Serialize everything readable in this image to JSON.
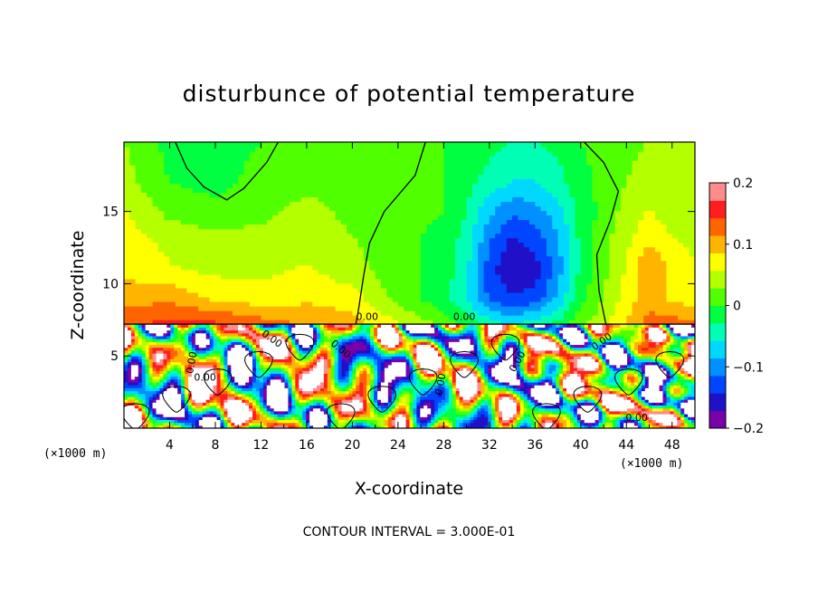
{
  "chart_data": {
    "type": "heatmap",
    "title": "disturbunce of potential temperature",
    "xlabel": "X-coordinate",
    "ylabel": "Z-coordinate",
    "x_unit": "(×1000 m)",
    "y_unit": "(×1000 m)",
    "xlim": [
      0,
      50
    ],
    "ylim": [
      0,
      19.8
    ],
    "x_ticks": [
      4,
      8,
      12,
      16,
      20,
      24,
      28,
      32,
      36,
      40,
      44,
      48
    ],
    "y_ticks": [
      5,
      10,
      15
    ],
    "colorbar": {
      "range": [
        -0.2,
        0.2
      ],
      "ticks": [
        0.2,
        0.1,
        0,
        -0.1,
        -0.2
      ],
      "tick_labels": [
        "0.2",
        "0.1",
        "0",
        "−0.1",
        "−0.2"
      ],
      "colors": [
        "#7a00aa",
        "#2010c8",
        "#0046ff",
        "#0090ff",
        "#00d8ff",
        "#00ffb4",
        "#00ff40",
        "#50ff00",
        "#b4ff00",
        "#ffff00",
        "#ffb400",
        "#ff6400",
        "#ff1e1e",
        "#ff8c8c"
      ]
    },
    "contour_interval_text": "CONTOUR INTERVAL = 3.000E-01",
    "contour_labels": [
      "0.00",
      "0.00",
      "0.00",
      "0.00",
      "0.00",
      "0.00",
      "0.00",
      "0.00",
      "0.00",
      "0.00"
    ],
    "boundary_z": 7.2,
    "upper_field": {
      "x": [
        0,
        4,
        8,
        12,
        16,
        20,
        24,
        28,
        30,
        32,
        34,
        36,
        38,
        40,
        42,
        44,
        46,
        48,
        50
      ],
      "z": [
        7.2,
        9,
        11,
        13,
        15,
        17,
        19.8
      ],
      "values": [
        [
          0.14,
          0.15,
          0.15,
          0.13,
          0.11,
          0.1,
          0.06,
          0.02,
          -0.01,
          -0.04,
          -0.06,
          -0.04,
          -0.02,
          0.02,
          0.05,
          0.09,
          0.13,
          0.13,
          0.12
        ],
        [
          0.1,
          0.11,
          0.08,
          0.07,
          0.08,
          0.07,
          0.02,
          -0.02,
          -0.06,
          -0.12,
          -0.14,
          -0.13,
          -0.08,
          -0.01,
          0.03,
          0.07,
          0.1,
          0.08,
          0.07
        ],
        [
          0.08,
          0.06,
          0.05,
          0.05,
          0.06,
          0.04,
          0.01,
          -0.01,
          -0.05,
          -0.13,
          -0.17,
          -0.16,
          -0.1,
          -0.02,
          0.02,
          0.06,
          0.12,
          0.08,
          0.06
        ],
        [
          0.07,
          0.05,
          0.04,
          0.04,
          0.05,
          0.03,
          0.01,
          -0.01,
          -0.04,
          -0.11,
          -0.15,
          -0.13,
          -0.09,
          -0.02,
          0.02,
          0.05,
          0.08,
          0.06,
          0.05
        ],
        [
          0.06,
          0.02,
          0.01,
          0.02,
          0.04,
          0.02,
          0.01,
          0.0,
          -0.03,
          -0.08,
          -0.11,
          -0.1,
          -0.07,
          -0.02,
          0.01,
          0.04,
          0.06,
          0.04,
          0.04
        ],
        [
          0.04,
          0.0,
          -0.01,
          0.01,
          0.02,
          0.02,
          0.01,
          0.0,
          -0.02,
          -0.04,
          -0.06,
          -0.06,
          -0.04,
          -0.01,
          0.01,
          0.03,
          0.04,
          0.03,
          0.03
        ],
        [
          0.03,
          -0.01,
          -0.01,
          0.0,
          0.02,
          0.01,
          0.01,
          0.0,
          -0.01,
          -0.02,
          -0.03,
          -0.03,
          -0.02,
          0.0,
          0.01,
          0.02,
          0.03,
          0.03,
          0.03
        ]
      ]
    }
  }
}
